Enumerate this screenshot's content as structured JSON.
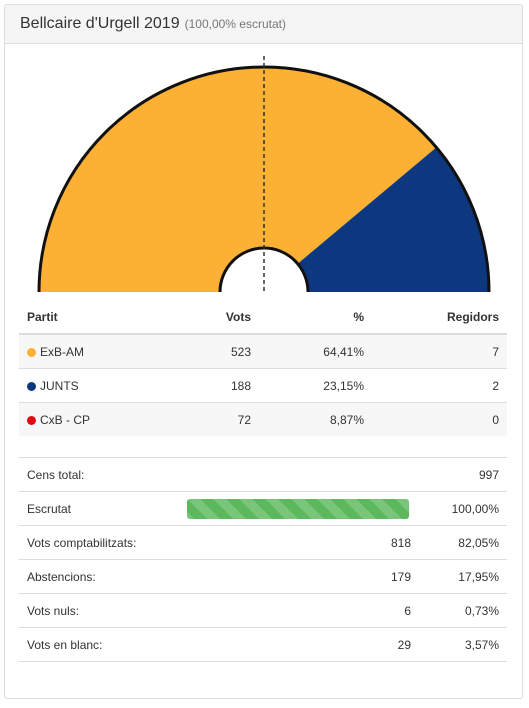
{
  "header": {
    "title": "Bellcaire d'Urgell 2019",
    "subtitle": "(100,00% escrutat)"
  },
  "colors": {
    "accent_orange": "#fcb034",
    "accent_navy": "#0d3880",
    "accent_red": "#e30613",
    "progress_green": "#5cb85c"
  },
  "results": {
    "headers": {
      "party": "Partit",
      "votes": "Vots",
      "percent": "%",
      "seats": "Regidors"
    },
    "rows": [
      {
        "party": "ExB-AM",
        "votes": "523",
        "percent": "64,41%",
        "seats": "7",
        "color": "#fcb034"
      },
      {
        "party": "JUNTS",
        "votes": "188",
        "percent": "23,15%",
        "seats": "2",
        "color": "#0d3880"
      },
      {
        "party": "CxB - CP",
        "votes": "72",
        "percent": "8,87%",
        "seats": "0",
        "color": "#e30613"
      }
    ]
  },
  "stats": {
    "census_label": "Cens total:",
    "census_value": "997",
    "scrutinized_label": "Escrutat",
    "scrutinized_progress": 1.0,
    "scrutinized_percent": "100,00%",
    "counted_label": "Vots comptabilitzats:",
    "counted_value": "818",
    "counted_percent": "82,05%",
    "abstention_label": "Abstencions:",
    "abstention_value": "179",
    "abstention_percent": "17,95%",
    "null_label": "Vots nuls:",
    "null_value": "6",
    "null_percent": "0,73%",
    "blank_label": "Vots en blanc:",
    "blank_value": "29",
    "blank_percent": "3,57%"
  },
  "chart_data": {
    "type": "pie",
    "subtype": "semicircle",
    "unit": "seats",
    "total": 9,
    "majority_line": true,
    "series": [
      {
        "name": "ExB-AM",
        "value": 7,
        "color": "#fcb034"
      },
      {
        "name": "JUNTS",
        "value": 2,
        "color": "#0d3880"
      }
    ]
  }
}
